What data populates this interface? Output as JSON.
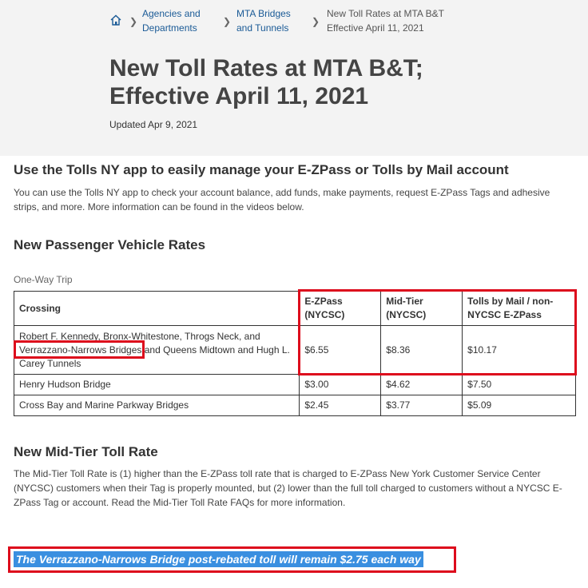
{
  "breadcrumb": {
    "items": [
      {
        "label": "Agencies and Departments",
        "line1": "Agencies and",
        "line2": "Departments"
      },
      {
        "label": "MTA Bridges and Tunnels",
        "line1": "MTA Bridges",
        "line2": "and Tunnels"
      },
      {
        "label": "New Toll Rates at MTA B&T Effective April 11, 2021",
        "line1": "New Toll Rates at MTA B&T",
        "line2": "Effective April 11, 2021"
      }
    ]
  },
  "page": {
    "title_line1": "New Toll Rates at MTA B&T;",
    "title_line2": "Effective April 11, 2021",
    "updated": "Updated Apr 9, 2021"
  },
  "app_section": {
    "heading": "Use the Tolls NY app to easily manage your E-ZPass or Tolls by Mail account",
    "line1": "You can use the Tolls NY app to check your account balance, add funds, make payments, request E-ZPass Tags and adhesive",
    "line2": "strips, and more. More information can be found in the videos below."
  },
  "passenger_section": {
    "heading": "New Passenger Vehicle Rates",
    "caption": "One-Way Trip",
    "headers": {
      "crossing": "Crossing",
      "ezpass_1": "E-ZPass",
      "ezpass_2": "(NYCSC)",
      "midtier_1": "Mid-Tier",
      "midtier_2": "(NYCSC)",
      "mail_1": "Tolls by Mail / non-",
      "mail_2": "NYCSC E-ZPass"
    },
    "rows": [
      {
        "crossing_a": "Robert F. Kennedy, Bronx-Whitestone, Throgs Neck, and",
        "crossing_b": "Verrazzano-Narrows Bridges",
        "crossing_c": " and Queens Midtown and Hugh L.",
        "crossing_d": "Carey Tunnels",
        "ezpass": "$6.55",
        "midtier": "$8.36",
        "mail": "$10.17"
      },
      {
        "crossing": "Henry Hudson Bridge",
        "ezpass": "$3.00",
        "midtier": "$4.62",
        "mail": "$7.50"
      },
      {
        "crossing": "Cross Bay and Marine Parkway Bridges",
        "ezpass": "$2.45",
        "midtier": "$3.77",
        "mail": "$5.09"
      }
    ]
  },
  "midtier_section": {
    "heading": "New Mid-Tier Toll Rate",
    "line1": "The Mid-Tier Toll Rate is (1) higher than the E-ZPass toll rate that is charged to E-ZPass New York Customer Service Center",
    "line2": "(NYCSC) customers when their Tag is properly mounted, but (2) lower than the full toll charged to customers without a NYCSC E-",
    "line3": "ZPass Tag or account. Read the Mid-Tier Toll Rate FAQs for more information."
  },
  "highlight": {
    "text": "The Verrazzano-Narrows Bridge post-rebated toll will remain $2.75 each way"
  },
  "colors": {
    "link": "#1a5a96",
    "hero_bg": "#f3f3f3",
    "annotation_red": "#dd0b1c",
    "selection_blue": "#3a8fe0"
  }
}
